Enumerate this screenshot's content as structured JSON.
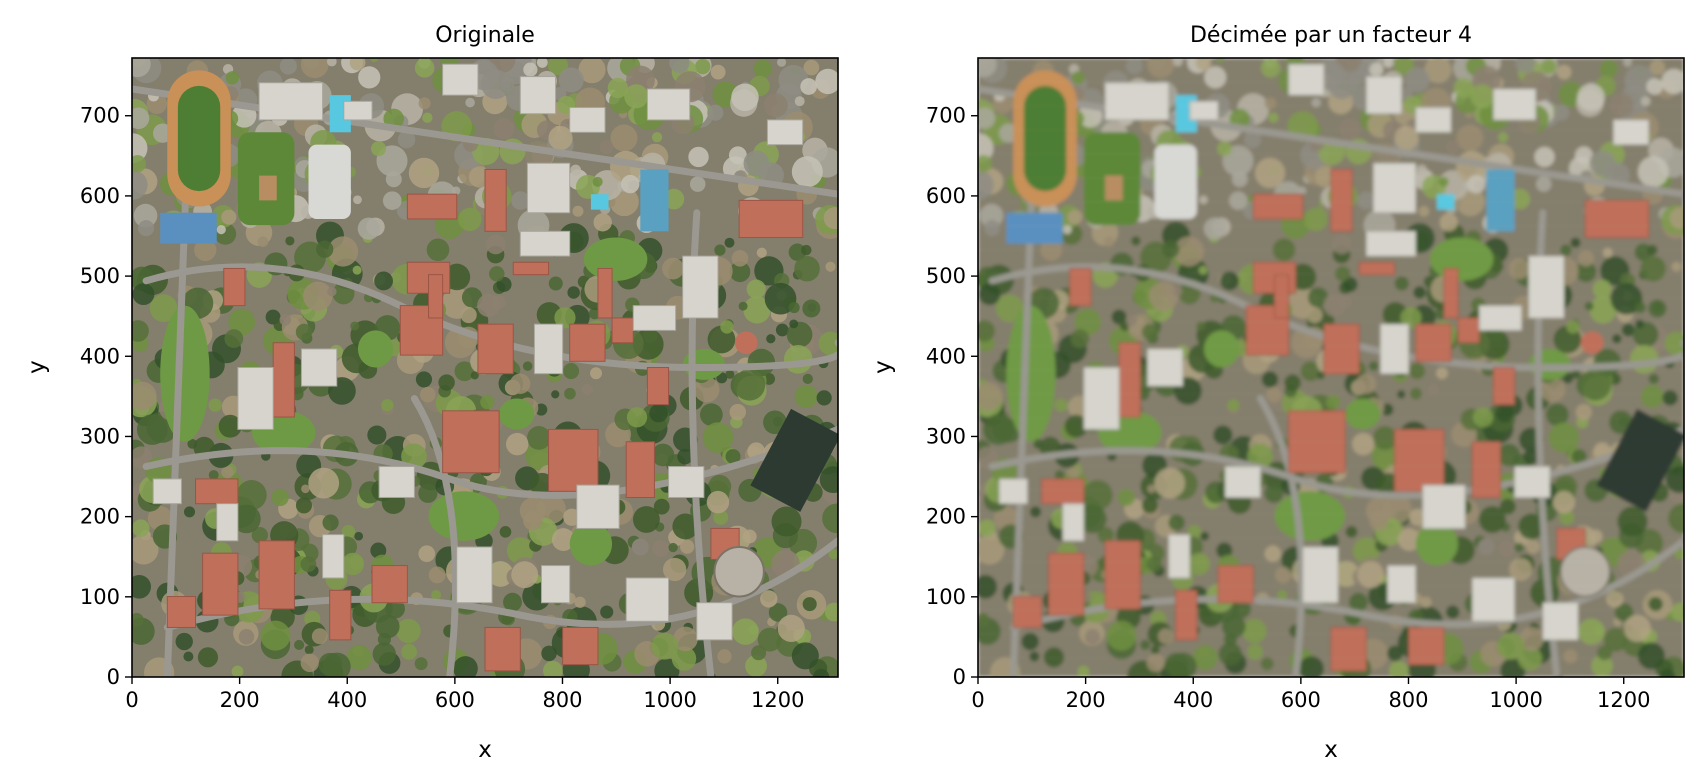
{
  "figure": {
    "panels": [
      {
        "id": "left",
        "title": "Originale",
        "variant": "original"
      },
      {
        "id": "right",
        "title": "Décimée par un facteur 4",
        "variant": "decimated"
      }
    ]
  },
  "chart_data": [
    {
      "type": "image",
      "title": "Originale",
      "xlabel": "x",
      "ylabel": "y",
      "xlim": [
        0,
        1312
      ],
      "ylim": [
        0,
        772
      ],
      "xticks": [
        0,
        200,
        400,
        600,
        800,
        1000,
        1200
      ],
      "yticks": [
        0,
        100,
        200,
        300,
        400,
        500,
        600,
        700
      ],
      "grid": false,
      "content": "aerial photograph of a university campus"
    },
    {
      "type": "image",
      "title": "Décimée par un facteur 4",
      "xlabel": "x",
      "ylabel": "y",
      "xlim": [
        0,
        1312
      ],
      "ylim": [
        0,
        772
      ],
      "xticks": [
        0,
        200,
        400,
        600,
        800,
        1000,
        1200
      ],
      "yticks": [
        0,
        100,
        200,
        300,
        400,
        500,
        600,
        700
      ],
      "grid": false,
      "decimation_factor": 4,
      "content": "aerial photograph of a university campus"
    }
  ],
  "palette": {
    "ground": "#8a8a78",
    "tree": "#3e5a2c",
    "lawn": "#6f9a45",
    "roof_red": "#c0705a",
    "roof_white": "#dcdcd4",
    "roof_gray": "#a8a8a0",
    "track": "#c99058",
    "field": "#4e7e34",
    "court": "#5aa0c8",
    "pool": "#58c8e0",
    "road": "#9a9a94",
    "axis": "#000000"
  }
}
